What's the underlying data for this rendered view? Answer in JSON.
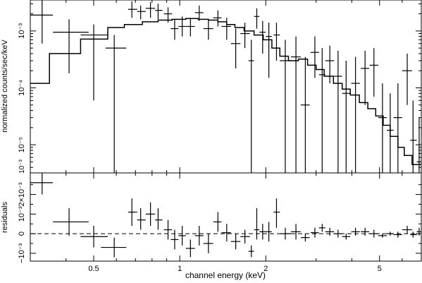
{
  "chart_data": [
    {
      "type": "scatter",
      "panel": "spectrum",
      "title": "",
      "xlabel": "channel energy (keV)",
      "ylabel": "normalized counts/sec/keV",
      "xscale": "log",
      "yscale": "log",
      "xlim": [
        0.3,
        7.0
      ],
      "ylim": [
        3.2e-06,
        0.0035
      ],
      "x_ticks": [
        0.5,
        1,
        2,
        5
      ],
      "x_tick_labels": [
        "0.5",
        "1",
        "2",
        "5"
      ],
      "y_ticks": [
        1e-05,
        0.0001,
        0.001
      ],
      "y_tick_labels": [
        "10⁻⁵",
        "10⁻⁴",
        "10⁻³"
      ],
      "y_extra_label": "10⁻³",
      "data_points": [
        {
          "x": 0.33,
          "xlo": 0.3,
          "xhi": 0.36,
          "y": 0.0019,
          "ylo": 0.0006,
          "yhi": 0.0035
        },
        {
          "x": 0.41,
          "xlo": 0.36,
          "xhi": 0.48,
          "y": 0.00095,
          "ylo": 0.00018,
          "yhi": 0.0016
        },
        {
          "x": 0.5,
          "xlo": 0.45,
          "xhi": 0.56,
          "y": 0.00085,
          "ylo": 6e-05,
          "yhi": 0.0013
        },
        {
          "x": 0.59,
          "xlo": 0.55,
          "xhi": 0.65,
          "y": 0.0005,
          "ylo": 3e-06,
          "yhi": 0.00085
        },
        {
          "x": 0.68,
          "xlo": 0.66,
          "xhi": 0.71,
          "y": 0.0024,
          "ylo": 0.0017,
          "yhi": 0.0033
        },
        {
          "x": 0.73,
          "xlo": 0.71,
          "xhi": 0.76,
          "y": 0.0022,
          "ylo": 0.0016,
          "yhi": 0.0028
        },
        {
          "x": 0.79,
          "xlo": 0.76,
          "xhi": 0.82,
          "y": 0.0025,
          "ylo": 0.0017,
          "yhi": 0.0032
        },
        {
          "x": 0.84,
          "xlo": 0.82,
          "xhi": 0.87,
          "y": 0.0023,
          "ylo": 0.0016,
          "yhi": 0.003
        },
        {
          "x": 0.91,
          "xlo": 0.88,
          "xhi": 0.94,
          "y": 0.002,
          "ylo": 0.0014,
          "yhi": 0.0026
        },
        {
          "x": 0.96,
          "xlo": 0.93,
          "xhi": 0.99,
          "y": 0.0011,
          "ylo": 0.0007,
          "yhi": 0.0016
        },
        {
          "x": 1.02,
          "xlo": 0.99,
          "xhi": 1.05,
          "y": 0.0012,
          "ylo": 0.0008,
          "yhi": 0.0018
        },
        {
          "x": 1.09,
          "xlo": 1.05,
          "xhi": 1.13,
          "y": 0.0012,
          "ylo": 0.0008,
          "yhi": 0.0017
        },
        {
          "x": 1.17,
          "xlo": 1.13,
          "xhi": 1.21,
          "y": 0.0021,
          "ylo": 0.0015,
          "yhi": 0.0028
        },
        {
          "x": 1.26,
          "xlo": 1.21,
          "xhi": 1.31,
          "y": 0.0011,
          "ylo": 0.0007,
          "yhi": 0.0016
        },
        {
          "x": 1.36,
          "xlo": 1.31,
          "xhi": 1.4,
          "y": 0.0017,
          "ylo": 0.0012,
          "yhi": 0.0023
        },
        {
          "x": 1.46,
          "xlo": 1.4,
          "xhi": 1.51,
          "y": 0.0012,
          "ylo": 0.0007,
          "yhi": 0.0017
        },
        {
          "x": 1.57,
          "xlo": 1.51,
          "xhi": 1.63,
          "y": 0.0006,
          "ylo": 0.00022,
          "yhi": 0.0011
        },
        {
          "x": 1.69,
          "xlo": 1.63,
          "xhi": 1.76,
          "y": 0.0009,
          "ylo": 0.0005,
          "yhi": 0.0014
        },
        {
          "x": 1.78,
          "xlo": 1.74,
          "xhi": 1.82,
          "y": 0.0003,
          "ylo": 3e-06,
          "yhi": 0.0007
        },
        {
          "x": 1.86,
          "xlo": 1.82,
          "xhi": 1.9,
          "y": 0.0018,
          "ylo": 0.0011,
          "yhi": 0.0025
        },
        {
          "x": 1.95,
          "xlo": 1.9,
          "xhi": 2.0,
          "y": 0.00095,
          "ylo": 0.0004,
          "yhi": 0.0015
        },
        {
          "x": 2.05,
          "xlo": 2.0,
          "xhi": 2.1,
          "y": 0.0008,
          "ylo": 0.00015,
          "yhi": 0.0014
        },
        {
          "x": 2.18,
          "xlo": 2.13,
          "xhi": 2.24,
          "y": 0.00085,
          "ylo": 0.0003,
          "yhi": 0.0014
        },
        {
          "x": 2.34,
          "xlo": 2.24,
          "xhi": 2.45,
          "y": 0.0003,
          "ylo": 3e-06,
          "yhi": 0.0007
        },
        {
          "x": 2.55,
          "xlo": 2.45,
          "xhi": 2.65,
          "y": 0.00035,
          "ylo": 3e-06,
          "yhi": 0.0008
        },
        {
          "x": 2.75,
          "xlo": 2.65,
          "xhi": 2.85,
          "y": 5e-05,
          "ylo": 3e-06,
          "yhi": 0.00035
        },
        {
          "x": 2.97,
          "xlo": 2.87,
          "xhi": 3.07,
          "y": 0.00042,
          "ylo": 0.00015,
          "yhi": 0.0008
        },
        {
          "x": 3.15,
          "xlo": 3.07,
          "xhi": 3.23,
          "y": 0.00017,
          "ylo": 3e-06,
          "yhi": 0.0005
        },
        {
          "x": 3.35,
          "xlo": 3.23,
          "xhi": 3.47,
          "y": 0.0003,
          "ylo": 0.00012,
          "yhi": 0.00055
        },
        {
          "x": 3.58,
          "xlo": 3.47,
          "xhi": 3.7,
          "y": 0.00016,
          "ylo": 3e-06,
          "yhi": 0.00045
        },
        {
          "x": 3.82,
          "xlo": 3.7,
          "xhi": 3.95,
          "y": 8e-05,
          "ylo": 3e-06,
          "yhi": 0.0003
        },
        {
          "x": 4.12,
          "xlo": 3.98,
          "xhi": 4.27,
          "y": 0.00012,
          "ylo": 3e-06,
          "yhi": 0.00035
        },
        {
          "x": 4.45,
          "xlo": 4.3,
          "xhi": 4.6,
          "y": 0.00022,
          "ylo": 5e-05,
          "yhi": 0.00045
        },
        {
          "x": 4.78,
          "xlo": 4.62,
          "xhi": 4.95,
          "y": 0.00025,
          "ylo": 7e-05,
          "yhi": 0.0005
        },
        {
          "x": 5.12,
          "xlo": 4.95,
          "xhi": 5.3,
          "y": 3e-05,
          "ylo": 3e-06,
          "yhi": 0.00012
        },
        {
          "x": 5.45,
          "xlo": 5.3,
          "xhi": 5.6,
          "y": 1.8e-05,
          "ylo": 3e-06,
          "yhi": 8e-05
        },
        {
          "x": 5.8,
          "xlo": 5.6,
          "xhi": 6.0,
          "y": 3e-05,
          "ylo": 3e-06,
          "yhi": 0.00012
        },
        {
          "x": 6.25,
          "xlo": 6.0,
          "xhi": 6.5,
          "y": 0.0002,
          "ylo": 5e-05,
          "yhi": 0.0004
        },
        {
          "x": 6.55,
          "xlo": 6.4,
          "xhi": 6.75,
          "y": 1.2e-05,
          "ylo": 3e-06,
          "yhi": 6e-05
        },
        {
          "x": 6.88,
          "xlo": 6.75,
          "xhi": 7.0,
          "y": 5e-06,
          "ylo": 3e-06,
          "yhi": 3e-05
        }
      ],
      "model_steps": [
        {
          "x0": 0.3,
          "x1": 0.35,
          "y": 0.00012
        },
        {
          "x0": 0.35,
          "x1": 0.45,
          "y": 0.0004
        },
        {
          "x0": 0.45,
          "x1": 0.56,
          "y": 0.00072
        },
        {
          "x0": 0.56,
          "x1": 0.64,
          "y": 0.00115
        },
        {
          "x0": 0.64,
          "x1": 0.74,
          "y": 0.0013
        },
        {
          "x0": 0.74,
          "x1": 0.84,
          "y": 0.00145
        },
        {
          "x0": 0.84,
          "x1": 0.94,
          "y": 0.00155
        },
        {
          "x0": 0.94,
          "x1": 1.05,
          "y": 0.0016
        },
        {
          "x0": 1.05,
          "x1": 1.16,
          "y": 0.00165
        },
        {
          "x0": 1.16,
          "x1": 1.26,
          "y": 0.0016
        },
        {
          "x0": 1.26,
          "x1": 1.36,
          "y": 0.00155
        },
        {
          "x0": 1.36,
          "x1": 1.46,
          "y": 0.00145
        },
        {
          "x0": 1.46,
          "x1": 1.56,
          "y": 0.0013
        },
        {
          "x0": 1.56,
          "x1": 1.68,
          "y": 0.00115
        },
        {
          "x0": 1.68,
          "x1": 1.82,
          "y": 0.001
        },
        {
          "x0": 1.82,
          "x1": 1.96,
          "y": 0.00085
        },
        {
          "x0": 1.96,
          "x1": 2.1,
          "y": 0.0007
        },
        {
          "x0": 2.1,
          "x1": 2.24,
          "y": 0.0005
        },
        {
          "x0": 2.24,
          "x1": 2.4,
          "y": 0.00036
        },
        {
          "x0": 2.4,
          "x1": 2.6,
          "y": 0.0003
        },
        {
          "x0": 2.6,
          "x1": 2.8,
          "y": 0.00032
        },
        {
          "x0": 2.8,
          "x1": 3.0,
          "y": 0.00025
        },
        {
          "x0": 3.0,
          "x1": 3.2,
          "y": 0.00021
        },
        {
          "x0": 3.2,
          "x1": 3.45,
          "y": 0.00016
        },
        {
          "x0": 3.45,
          "x1": 3.7,
          "y": 0.00012
        },
        {
          "x0": 3.7,
          "x1": 3.95,
          "y": 9.5e-05
        },
        {
          "x0": 3.95,
          "x1": 4.25,
          "y": 7.5e-05
        },
        {
          "x0": 4.25,
          "x1": 4.55,
          "y": 5.5e-05
        },
        {
          "x0": 4.55,
          "x1": 4.85,
          "y": 4.3e-05
        },
        {
          "x0": 4.85,
          "x1": 5.15,
          "y": 3.2e-05
        },
        {
          "x0": 5.15,
          "x1": 5.45,
          "y": 2.2e-05
        },
        {
          "x0": 5.45,
          "x1": 5.8,
          "y": 1.4e-05
        },
        {
          "x0": 5.8,
          "x1": 6.1,
          "y": 9e-06
        },
        {
          "x0": 6.1,
          "x1": 6.5,
          "y": 6.5e-06
        },
        {
          "x0": 6.5,
          "x1": 7.0,
          "y": 4.5e-06
        }
      ]
    },
    {
      "type": "scatter",
      "panel": "residuals",
      "title": "",
      "xlabel": "channel energy (keV)",
      "ylabel": "residuals",
      "xscale": "log",
      "xlim": [
        0.3,
        7.0
      ],
      "ylim": [
        -0.0014,
        0.0031
      ],
      "y_ticks": [
        -0.001,
        0,
        0.001,
        0.002
      ],
      "y_tick_labels": [
        "−10⁻³",
        "0",
        "10⁻³",
        "2×10⁻³"
      ],
      "zero_line": "dashed",
      "data_points": [
        {
          "x": 0.33,
          "xlo": 0.3,
          "xhi": 0.36,
          "y": 0.0026,
          "ylo": 0.002,
          "yhi": 0.0031
        },
        {
          "x": 0.41,
          "xlo": 0.36,
          "xhi": 0.48,
          "y": 0.0006,
          "ylo": -0.0001,
          "yhi": 0.0013
        },
        {
          "x": 0.5,
          "xlo": 0.45,
          "xhi": 0.56,
          "y": -0.00015,
          "ylo": -0.0007,
          "yhi": 0.0004
        },
        {
          "x": 0.59,
          "xlo": 0.53,
          "xhi": 0.65,
          "y": -0.0007,
          "ylo": -0.0012,
          "yhi": -0.0002
        },
        {
          "x": 0.68,
          "xlo": 0.66,
          "xhi": 0.71,
          "y": 0.0011,
          "ylo": 0.0004,
          "yhi": 0.0018
        },
        {
          "x": 0.73,
          "xlo": 0.71,
          "xhi": 0.76,
          "y": 0.0007,
          "ylo": 0.0002,
          "yhi": 0.0013
        },
        {
          "x": 0.79,
          "xlo": 0.76,
          "xhi": 0.82,
          "y": 0.001,
          "ylo": 0.0004,
          "yhi": 0.0016
        },
        {
          "x": 0.84,
          "xlo": 0.82,
          "xhi": 0.87,
          "y": 0.0007,
          "ylo": 0.0002,
          "yhi": 0.0013
        },
        {
          "x": 0.91,
          "xlo": 0.88,
          "xhi": 0.94,
          "y": 0.0002,
          "ylo": -0.0003,
          "yhi": 0.0007
        },
        {
          "x": 0.96,
          "xlo": 0.93,
          "xhi": 0.99,
          "y": -0.0003,
          "ylo": -0.0008,
          "yhi": 0.0002
        },
        {
          "x": 1.02,
          "xlo": 0.99,
          "xhi": 1.05,
          "y": -0.0001,
          "ylo": -0.0006,
          "yhi": 0.0004
        },
        {
          "x": 1.09,
          "xlo": 1.05,
          "xhi": 1.13,
          "y": -0.00075,
          "ylo": -0.0012,
          "yhi": -0.0003
        },
        {
          "x": 1.17,
          "xlo": 1.13,
          "xhi": 1.21,
          "y": -0.0001,
          "ylo": -0.0006,
          "yhi": 0.0004
        },
        {
          "x": 1.26,
          "xlo": 1.21,
          "xhi": 1.31,
          "y": -0.0005,
          "ylo": -0.001,
          "yhi": 0.0
        },
        {
          "x": 1.36,
          "xlo": 1.31,
          "xhi": 1.4,
          "y": 0.0006,
          "ylo": 0.0001,
          "yhi": 0.0011
        },
        {
          "x": 1.46,
          "xlo": 1.4,
          "xhi": 1.51,
          "y": 5e-05,
          "ylo": -0.0004,
          "yhi": 0.0005
        },
        {
          "x": 1.57,
          "xlo": 1.51,
          "xhi": 1.63,
          "y": -0.0004,
          "ylo": -0.0008,
          "yhi": 0.0
        },
        {
          "x": 1.69,
          "xlo": 1.63,
          "xhi": 1.76,
          "y": -0.00015,
          "ylo": -0.0005,
          "yhi": 0.0002
        },
        {
          "x": 1.78,
          "xlo": 1.74,
          "xhi": 1.82,
          "y": -0.0009,
          "ylo": -0.0012,
          "yhi": -0.0006
        },
        {
          "x": 1.86,
          "xlo": 1.82,
          "xhi": 1.9,
          "y": 0.0002,
          "ylo": -0.0003,
          "yhi": 0.0013
        },
        {
          "x": 1.95,
          "xlo": 1.9,
          "xhi": 2.0,
          "y": 0.0001,
          "ylo": -0.0003,
          "yhi": 0.0005
        },
        {
          "x": 2.05,
          "xlo": 2.0,
          "xhi": 2.1,
          "y": 0.0001,
          "ylo": -0.0004,
          "yhi": 0.0006
        },
        {
          "x": 2.18,
          "xlo": 2.13,
          "xhi": 2.24,
          "y": 0.0011,
          "ylo": 0.0003,
          "yhi": 0.0018
        },
        {
          "x": 2.34,
          "xlo": 2.24,
          "xhi": 2.45,
          "y": 0.0,
          "ylo": -0.0003,
          "yhi": 0.0003
        },
        {
          "x": 2.55,
          "xlo": 2.45,
          "xhi": 2.65,
          "y": 0.0001,
          "ylo": -0.0003,
          "yhi": 0.0005
        },
        {
          "x": 2.75,
          "xlo": 2.65,
          "xhi": 2.85,
          "y": -0.0002,
          "ylo": -0.0004,
          "yhi": 0.0
        },
        {
          "x": 2.97,
          "xlo": 2.87,
          "xhi": 3.07,
          "y": 5e-05,
          "ylo": -0.0002,
          "yhi": 0.0003
        },
        {
          "x": 3.15,
          "xlo": 3.07,
          "xhi": 3.23,
          "y": 0.0003,
          "ylo": 0.0001,
          "yhi": 0.0005
        },
        {
          "x": 3.35,
          "xlo": 3.23,
          "xhi": 3.47,
          "y": 0.0001,
          "ylo": -0.0001,
          "yhi": 0.0003
        },
        {
          "x": 3.58,
          "xlo": 3.47,
          "xhi": 3.7,
          "y": 0.0,
          "ylo": -0.0002,
          "yhi": 0.0002
        },
        {
          "x": 3.82,
          "xlo": 3.7,
          "xhi": 3.95,
          "y": -0.00015,
          "ylo": -0.0003,
          "yhi": 0.0
        },
        {
          "x": 4.12,
          "xlo": 3.98,
          "xhi": 4.27,
          "y": 0.0001,
          "ylo": -0.0001,
          "yhi": 0.0003
        },
        {
          "x": 4.45,
          "xlo": 4.3,
          "xhi": 4.6,
          "y": 0.0001,
          "ylo": -0.0001,
          "yhi": 0.0003
        },
        {
          "x": 4.78,
          "xlo": 4.62,
          "xhi": 4.95,
          "y": 0.0,
          "ylo": -0.0002,
          "yhi": 0.0002
        },
        {
          "x": 5.12,
          "xlo": 4.95,
          "xhi": 5.3,
          "y": -0.0001,
          "ylo": -0.0002,
          "yhi": 0.0
        },
        {
          "x": 5.45,
          "xlo": 5.3,
          "xhi": 5.6,
          "y": 0.0,
          "ylo": -0.0001,
          "yhi": 0.0001
        },
        {
          "x": 5.8,
          "xlo": 5.6,
          "xhi": 6.0,
          "y": -5e-05,
          "ylo": -0.0002,
          "yhi": 0.0001
        },
        {
          "x": 6.25,
          "xlo": 6.0,
          "xhi": 6.5,
          "y": 0.0002,
          "ylo": 0.0,
          "yhi": 0.0004
        },
        {
          "x": 6.55,
          "xlo": 6.4,
          "xhi": 6.75,
          "y": -5e-05,
          "ylo": -0.0002,
          "yhi": 0.0001
        },
        {
          "x": 6.88,
          "xlo": 6.75,
          "xhi": 7.0,
          "y": 0.0001,
          "ylo": -0.0001,
          "yhi": 0.0003
        }
      ]
    }
  ],
  "labels": {
    "xlabel": "channel energy (keV)",
    "ylabel_top": "normalized counts/sec/keV",
    "ylabel_bottom": "residuals"
  }
}
